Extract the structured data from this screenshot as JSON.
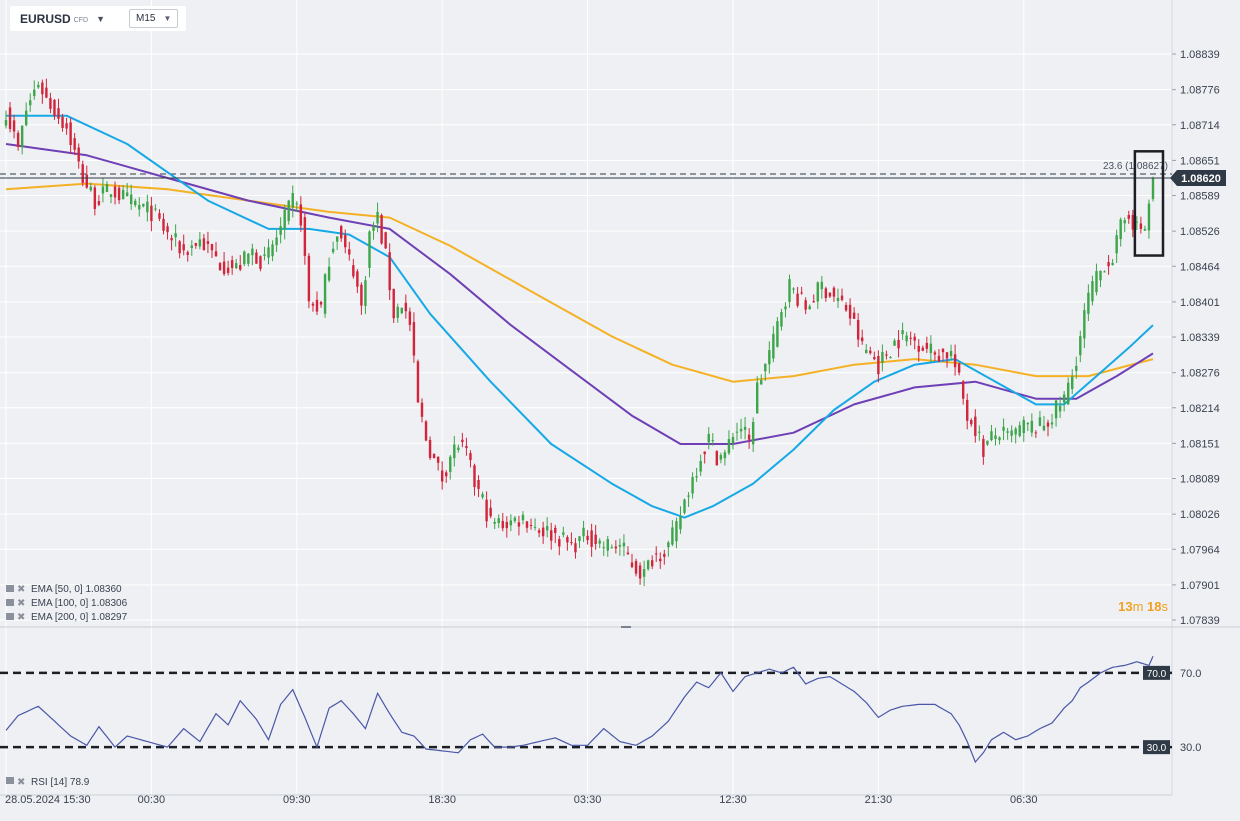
{
  "symbol": {
    "name": "EURUSD",
    "type": "CFD",
    "timeframe": "M15"
  },
  "colors": {
    "up": "#3da54a",
    "down": "#d2243b",
    "ema50": "#16a9e6",
    "ema100": "#6f3fb6",
    "ema200": "#f5b124",
    "rsi": "#4a57a8",
    "price_tag": "#2f3a46",
    "countdown": "#f0a020"
  },
  "price_axis": {
    "ticks": [
      "1.08839",
      "1.08776",
      "1.08714",
      "1.08651",
      "1.08589",
      "1.08526",
      "1.08464",
      "1.08401",
      "1.08339",
      "1.08276",
      "1.08214",
      "1.08151",
      "1.08089",
      "1.08026",
      "1.07964",
      "1.07901",
      "1.07839"
    ],
    "current_price": "1.08620"
  },
  "fib_label": "23.6 (1.08627)",
  "countdown": {
    "minutes": "13",
    "m": "m",
    "seconds": "18",
    "s": "s"
  },
  "legend": [
    {
      "label": "EMA  [50,  0]",
      "value": "1.08360"
    },
    {
      "label": "EMA  [100,  0]",
      "value": "1.08306"
    },
    {
      "label": "EMA  [200,  0]",
      "value": "1.08297"
    }
  ],
  "rsi_legend": {
    "label": "RSI  [14]",
    "value": "78.9"
  },
  "rsi_axis": {
    "upper": "70.0",
    "lower": "30.0",
    "upper_badge": "70.0",
    "lower_badge": "30.0"
  },
  "time_axis": [
    {
      "label": "28.05.2024   15:30",
      "i": 0
    },
    {
      "label": "00:30",
      "i": 36
    },
    {
      "label": "09:30",
      "i": 72
    },
    {
      "label": "18:30",
      "i": 108
    },
    {
      "label": "03:30",
      "i": 144
    },
    {
      "label": "12:30",
      "i": 180
    },
    {
      "label": "21:30",
      "i": 216
    },
    {
      "label": "06:30",
      "i": 252
    }
  ],
  "chart_data": [
    {
      "type": "candlestick",
      "title": "EURUSD",
      "interval": "M15",
      "ylim": [
        1.07839,
        1.08839
      ],
      "series": [
        {
          "name": "EMA [50, 0]",
          "last": 1.0836
        },
        {
          "name": "EMA [100, 0]",
          "last": 1.08306
        },
        {
          "name": "EMA [200, 0]",
          "last": 1.08297
        }
      ],
      "fib_level": {
        "label": "23.6",
        "value": 1.08627
      },
      "last_price": 1.0862,
      "close_path": [
        [
          0,
          1.0874
        ],
        [
          3,
          1.0867
        ],
        [
          5,
          1.0874
        ],
        [
          8,
          1.0879
        ],
        [
          10,
          1.0876
        ],
        [
          15,
          1.0871
        ],
        [
          19,
          1.0862
        ],
        [
          22,
          1.0858
        ],
        [
          26,
          1.086
        ],
        [
          30,
          1.0858
        ],
        [
          36,
          1.0856
        ],
        [
          40,
          1.0852
        ],
        [
          44,
          1.0849
        ],
        [
          48,
          1.0851
        ],
        [
          53,
          1.0847
        ],
        [
          57,
          1.0846
        ],
        [
          61,
          1.0849
        ],
        [
          64,
          1.0847
        ],
        [
          68,
          1.0853
        ],
        [
          71,
          1.0858
        ],
        [
          73,
          1.0855
        ],
        [
          75,
          1.084
        ],
        [
          78,
          1.0839
        ],
        [
          80,
          1.0848
        ],
        [
          82,
          1.0853
        ],
        [
          84,
          1.0849
        ],
        [
          86,
          1.0846
        ],
        [
          88,
          1.0839
        ],
        [
          90,
          1.0852
        ],
        [
          92,
          1.0855
        ],
        [
          94,
          1.0848
        ],
        [
          96,
          1.0838
        ],
        [
          98,
          1.084
        ],
        [
          100,
          1.0836
        ],
        [
          102,
          1.0822
        ],
        [
          104,
          1.0816
        ],
        [
          106,
          1.0812
        ],
        [
          108,
          1.0809
        ],
        [
          110,
          1.0813
        ],
        [
          112,
          1.0815
        ],
        [
          114,
          1.0813
        ],
        [
          116,
          1.0808
        ],
        [
          118,
          1.0805
        ],
        [
          120,
          1.0801
        ],
        [
          124,
          1.0801
        ],
        [
          128,
          1.0802
        ],
        [
          132,
          1.08
        ],
        [
          136,
          1.0799
        ],
        [
          140,
          1.0797
        ],
        [
          144,
          1.0799
        ],
        [
          148,
          1.0797
        ],
        [
          152,
          1.0797
        ],
        [
          156,
          1.0793
        ],
        [
          158,
          1.0792
        ],
        [
          160,
          1.0795
        ],
        [
          164,
          1.0797
        ],
        [
          166,
          1.08
        ],
        [
          168,
          1.0805
        ],
        [
          170,
          1.0809
        ],
        [
          172,
          1.0813
        ],
        [
          174,
          1.0816
        ],
        [
          176,
          1.0813
        ],
        [
          178,
          1.0813
        ],
        [
          180,
          1.0817
        ],
        [
          182,
          1.0818
        ],
        [
          184,
          1.0815
        ],
        [
          186,
          1.0825
        ],
        [
          188,
          1.0829
        ],
        [
          190,
          1.0833
        ],
        [
          192,
          1.0839
        ],
        [
          194,
          1.0843
        ],
        [
          196,
          1.0841
        ],
        [
          198,
          1.0839
        ],
        [
          200,
          1.0841
        ],
        [
          202,
          1.0843
        ],
        [
          205,
          1.0841
        ],
        [
          208,
          1.0839
        ],
        [
          210,
          1.0836
        ],
        [
          212,
          1.0832
        ],
        [
          214,
          1.0831
        ],
        [
          216,
          1.0829
        ],
        [
          218,
          1.0831
        ],
        [
          220,
          1.0833
        ],
        [
          222,
          1.0834
        ],
        [
          226,
          1.0833
        ],
        [
          230,
          1.0831
        ],
        [
          234,
          1.0831
        ],
        [
          236,
          1.0826
        ],
        [
          238,
          1.082
        ],
        [
          240,
          1.0818
        ],
        [
          242,
          1.0814
        ],
        [
          244,
          1.0816
        ],
        [
          246,
          1.0817
        ],
        [
          248,
          1.0816
        ],
        [
          250,
          1.0817
        ],
        [
          252,
          1.0818
        ],
        [
          254,
          1.0818
        ],
        [
          256,
          1.0818
        ],
        [
          258,
          1.0819
        ],
        [
          260,
          1.0821
        ],
        [
          262,
          1.0823
        ],
        [
          264,
          1.0827
        ],
        [
          266,
          1.0834
        ],
        [
          268,
          1.0841
        ],
        [
          270,
          1.0844
        ],
        [
          272,
          1.0847
        ],
        [
          274,
          1.0848
        ],
        [
          276,
          1.0853
        ],
        [
          278,
          1.0856
        ],
        [
          280,
          1.0853
        ],
        [
          282,
          1.0853
        ],
        [
          284,
          1.0862
        ]
      ],
      "ema_path": {
        "ema50": [
          [
            0,
            1.0873
          ],
          [
            15,
            1.0873
          ],
          [
            30,
            1.0868
          ],
          [
            50,
            1.0858
          ],
          [
            65,
            1.0853
          ],
          [
            75,
            1.0853
          ],
          [
            85,
            1.0852
          ],
          [
            95,
            1.0848
          ],
          [
            105,
            1.0838
          ],
          [
            120,
            1.0826
          ],
          [
            135,
            1.0815
          ],
          [
            150,
            1.0808
          ],
          [
            160,
            1.0804
          ],
          [
            168,
            1.0802
          ],
          [
            175,
            1.0804
          ],
          [
            185,
            1.0808
          ],
          [
            195,
            1.0814
          ],
          [
            205,
            1.0821
          ],
          [
            215,
            1.0826
          ],
          [
            225,
            1.0829
          ],
          [
            235,
            1.083
          ],
          [
            245,
            1.0826
          ],
          [
            255,
            1.0822
          ],
          [
            262,
            1.0822
          ],
          [
            270,
            1.0827
          ],
          [
            278,
            1.0832
          ],
          [
            284,
            1.0836
          ]
        ],
        "ema100": [
          [
            0,
            1.0868
          ],
          [
            20,
            1.0866
          ],
          [
            40,
            1.0862
          ],
          [
            60,
            1.0858
          ],
          [
            80,
            1.0855
          ],
          [
            95,
            1.0853
          ],
          [
            110,
            1.0845
          ],
          [
            125,
            1.0836
          ],
          [
            140,
            1.0828
          ],
          [
            155,
            1.082
          ],
          [
            167,
            1.0815
          ],
          [
            180,
            1.0815
          ],
          [
            195,
            1.0817
          ],
          [
            210,
            1.0822
          ],
          [
            225,
            1.0825
          ],
          [
            240,
            1.0826
          ],
          [
            255,
            1.0823
          ],
          [
            265,
            1.0823
          ],
          [
            275,
            1.0827
          ],
          [
            284,
            1.0831
          ]
        ],
        "ema200": [
          [
            0,
            1.086
          ],
          [
            20,
            1.0861
          ],
          [
            40,
            1.086
          ],
          [
            60,
            1.0858
          ],
          [
            80,
            1.0856
          ],
          [
            95,
            1.0855
          ],
          [
            110,
            1.085
          ],
          [
            130,
            1.0842
          ],
          [
            150,
            1.0834
          ],
          [
            165,
            1.0829
          ],
          [
            180,
            1.0826
          ],
          [
            195,
            1.0827
          ],
          [
            210,
            1.0829
          ],
          [
            225,
            1.083
          ],
          [
            240,
            1.0829
          ],
          [
            255,
            1.0827
          ],
          [
            268,
            1.0827
          ],
          [
            284,
            1.083
          ]
        ]
      }
    },
    {
      "type": "line",
      "title": "RSI [14]",
      "ylim": [
        15,
        85
      ],
      "levels": [
        70,
        30
      ],
      "last_value": 78.9,
      "values_path": [
        [
          0,
          39
        ],
        [
          3,
          47
        ],
        [
          8,
          52
        ],
        [
          12,
          44
        ],
        [
          16,
          36
        ],
        [
          20,
          31
        ],
        [
          23,
          41
        ],
        [
          27,
          30
        ],
        [
          30,
          36
        ],
        [
          35,
          33
        ],
        [
          40,
          30
        ],
        [
          44,
          40
        ],
        [
          48,
          33
        ],
        [
          52,
          48
        ],
        [
          55,
          42
        ],
        [
          58,
          55
        ],
        [
          62,
          45
        ],
        [
          65,
          34
        ],
        [
          68,
          53
        ],
        [
          71,
          61
        ],
        [
          74,
          46
        ],
        [
          77,
          30
        ],
        [
          80,
          51
        ],
        [
          83,
          55
        ],
        [
          86,
          48
        ],
        [
          89,
          40
        ],
        [
          92,
          59
        ],
        [
          95,
          48
        ],
        [
          98,
          38
        ],
        [
          101,
          36
        ],
        [
          104,
          29
        ],
        [
          108,
          28
        ],
        [
          112,
          27
        ],
        [
          115,
          34
        ],
        [
          118,
          37
        ],
        [
          121,
          30
        ],
        [
          125,
          30
        ],
        [
          128,
          31
        ],
        [
          132,
          33
        ],
        [
          136,
          35
        ],
        [
          140,
          31
        ],
        [
          144,
          31
        ],
        [
          148,
          40
        ],
        [
          152,
          33
        ],
        [
          156,
          31
        ],
        [
          160,
          36
        ],
        [
          164,
          44
        ],
        [
          168,
          57
        ],
        [
          171,
          65
        ],
        [
          174,
          62
        ],
        [
          177,
          70
        ],
        [
          180,
          60
        ],
        [
          183,
          68
        ],
        [
          186,
          70
        ],
        [
          189,
          72
        ],
        [
          192,
          70
        ],
        [
          195,
          73
        ],
        [
          198,
          64
        ],
        [
          201,
          67
        ],
        [
          204,
          68
        ],
        [
          207,
          64
        ],
        [
          210,
          60
        ],
        [
          213,
          54
        ],
        [
          216,
          46
        ],
        [
          219,
          50
        ],
        [
          222,
          52
        ],
        [
          226,
          53
        ],
        [
          230,
          53
        ],
        [
          234,
          48
        ],
        [
          236,
          42
        ],
        [
          238,
          33
        ],
        [
          240,
          22
        ],
        [
          242,
          27
        ],
        [
          244,
          34
        ],
        [
          247,
          38
        ],
        [
          250,
          34
        ],
        [
          253,
          36
        ],
        [
          256,
          40
        ],
        [
          259,
          43
        ],
        [
          262,
          51
        ],
        [
          264,
          55
        ],
        [
          266,
          62
        ],
        [
          268,
          65
        ],
        [
          271,
          70
        ],
        [
          274,
          73
        ],
        [
          277,
          74
        ],
        [
          280,
          76
        ],
        [
          283,
          74
        ],
        [
          284,
          78.9
        ]
      ]
    }
  ]
}
